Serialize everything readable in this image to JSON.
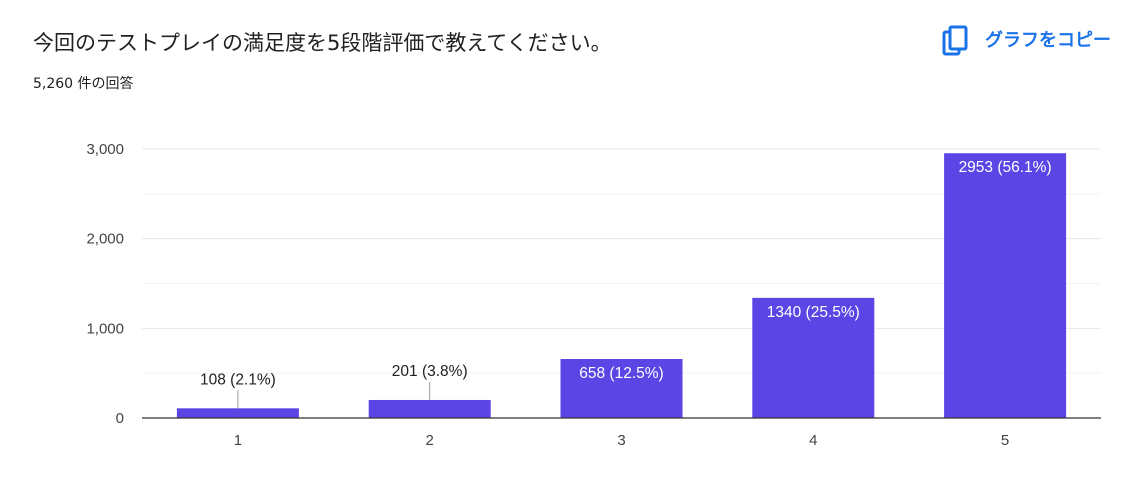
{
  "header": {
    "title": "今回のテストプレイの満足度を5段階評価で教えてください。",
    "response_count": "5,260 件の回答",
    "copy_button_label": "グラフをコピー",
    "copy_icon": "copy-icon"
  },
  "colors": {
    "bar": "#5b45e4",
    "accent": "#1a73e8",
    "grid": "#e8e8e8",
    "text": "#202124"
  },
  "chart_data": {
    "type": "bar",
    "categories": [
      "1",
      "2",
      "3",
      "4",
      "5"
    ],
    "values": [
      108,
      201,
      658,
      1340,
      2953
    ],
    "data_labels": [
      "108 (2.1%)",
      "201 (3.8%)",
      "658 (12.5%)",
      "1340 (25.5%)",
      "2953 (56.1%)"
    ],
    "y_ticks": [
      0,
      1000,
      2000,
      3000
    ],
    "y_tick_labels": [
      "0",
      "1,000",
      "2,000",
      "3,000"
    ],
    "ylim": [
      0,
      3000
    ],
    "grid": true,
    "legend": "none"
  }
}
